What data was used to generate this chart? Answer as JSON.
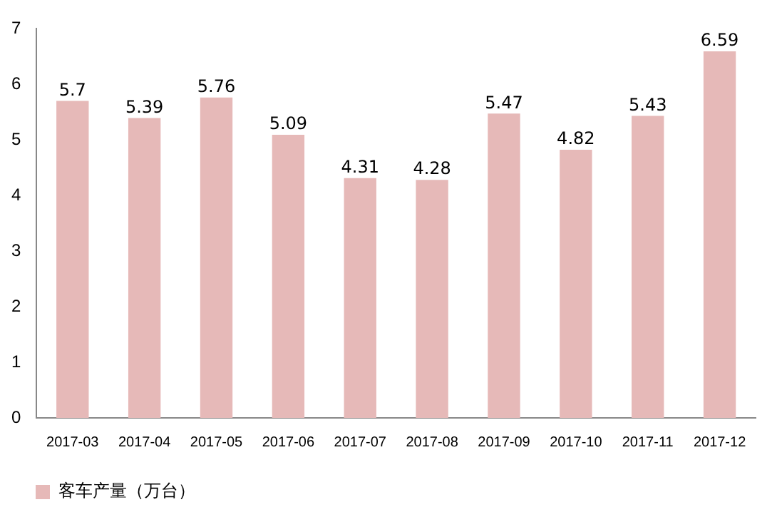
{
  "chart_data": {
    "type": "bar",
    "categories": [
      "2017-03",
      "2017-04",
      "2017-05",
      "2017-06",
      "2017-07",
      "2017-08",
      "2017-09",
      "2017-10",
      "2017-11",
      "2017-12"
    ],
    "series": [
      {
        "name": "客车产量（万台）",
        "color": "#e6b9b8",
        "values": [
          5.7,
          5.39,
          5.76,
          5.09,
          4.31,
          4.28,
          5.47,
          4.82,
          5.43,
          6.59
        ]
      }
    ],
    "ylim": [
      0,
      7
    ],
    "yticks": [
      0,
      1,
      2,
      3,
      4,
      5,
      6,
      7
    ],
    "grid": false,
    "legend": "bottom",
    "data_labels": true
  }
}
